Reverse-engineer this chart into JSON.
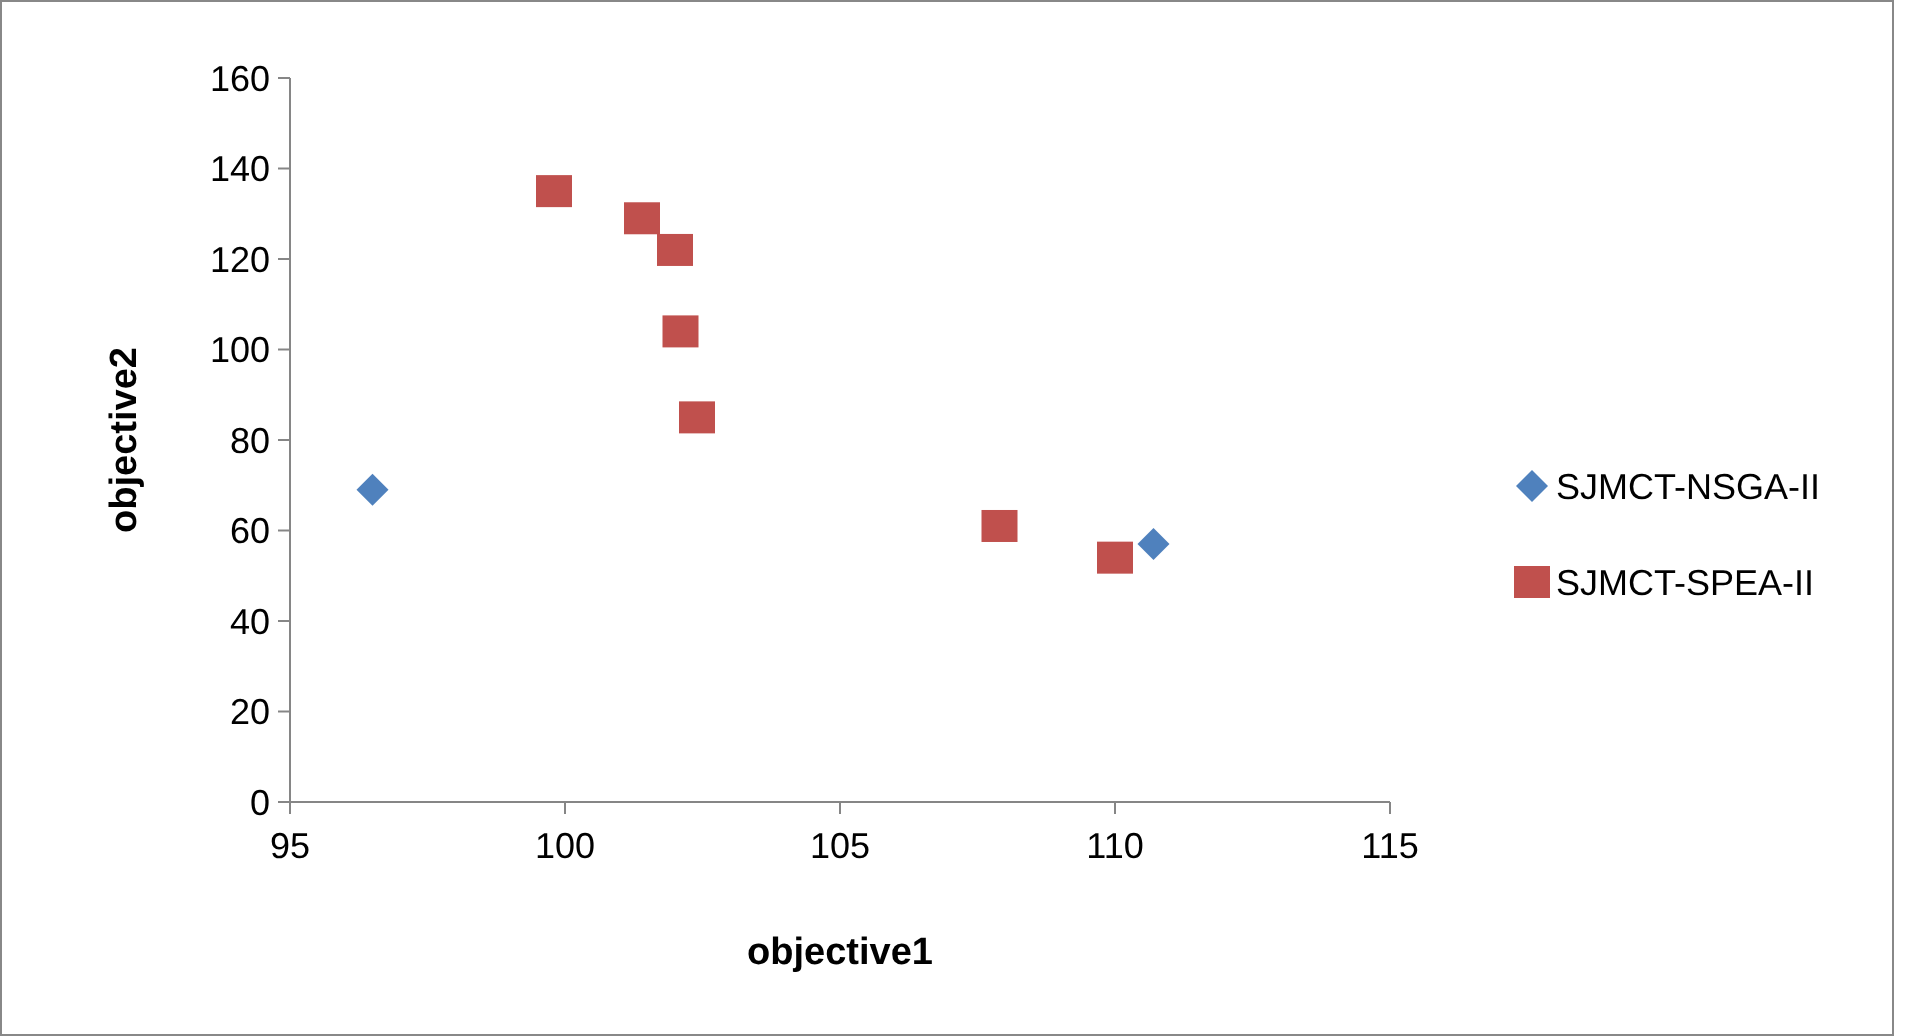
{
  "chart_data": {
    "type": "scatter",
    "xlabel": "objective1",
    "ylabel": "objective2",
    "xlim": [
      95,
      115
    ],
    "xticks": [
      95,
      100,
      105,
      110,
      115
    ],
    "ylim": [
      0,
      160
    ],
    "yticks": [
      0,
      20,
      40,
      60,
      80,
      100,
      120,
      140,
      160
    ],
    "grid": false,
    "legend": "right",
    "series": [
      {
        "name": "SJMCT-NSGA-II",
        "color": "#4f81bd",
        "marker": "diamond",
        "x": [
          96.5,
          110.7
        ],
        "values": [
          69,
          57
        ]
      },
      {
        "name": "SJMCT-SPEA-II",
        "color": "#c0504d",
        "marker": "square",
        "x": [
          99.8,
          101.4,
          102.0,
          102.1,
          102.4,
          107.9,
          110.0
        ],
        "values": [
          135,
          129,
          122,
          104,
          85,
          61,
          54
        ]
      }
    ]
  }
}
